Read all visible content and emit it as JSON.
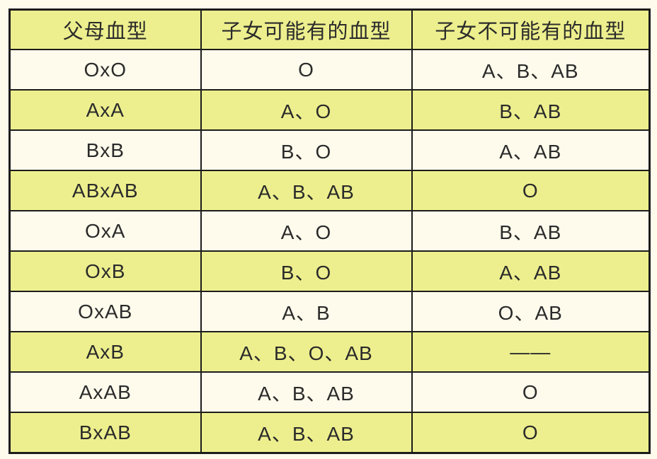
{
  "page": {
    "background_color": "#FFFBEC"
  },
  "colors": {
    "row_yellow": "#EDEF8E",
    "row_cream": "#FFFBEC",
    "border": "#1C1C1C",
    "text": "#2B2B2B"
  },
  "table": {
    "headers": [
      "父母血型",
      "子女可能有的血型",
      "子女不可能有的血型"
    ],
    "rows": [
      {
        "parents": "OxO",
        "possible": "O",
        "impossible": "A、B、AB"
      },
      {
        "parents": "AxA",
        "possible": "A、O",
        "impossible": "B、AB"
      },
      {
        "parents": "BxB",
        "possible": "B、O",
        "impossible": "A、AB"
      },
      {
        "parents": "ABxAB",
        "possible": "A、B、AB",
        "impossible": "O"
      },
      {
        "parents": "OxA",
        "possible": "A、O",
        "impossible": "B、AB"
      },
      {
        "parents": "OxB",
        "possible": "B、O",
        "impossible": "A、AB"
      },
      {
        "parents": "OxAB",
        "possible": "A、B",
        "impossible": "O、AB"
      },
      {
        "parents": "AxB",
        "possible": "A、B、O、AB",
        "impossible": "——"
      },
      {
        "parents": "AxAB",
        "possible": "A、B、AB",
        "impossible": "O"
      },
      {
        "parents": "BxAB",
        "possible": "A、B、AB",
        "impossible": "O"
      }
    ]
  }
}
